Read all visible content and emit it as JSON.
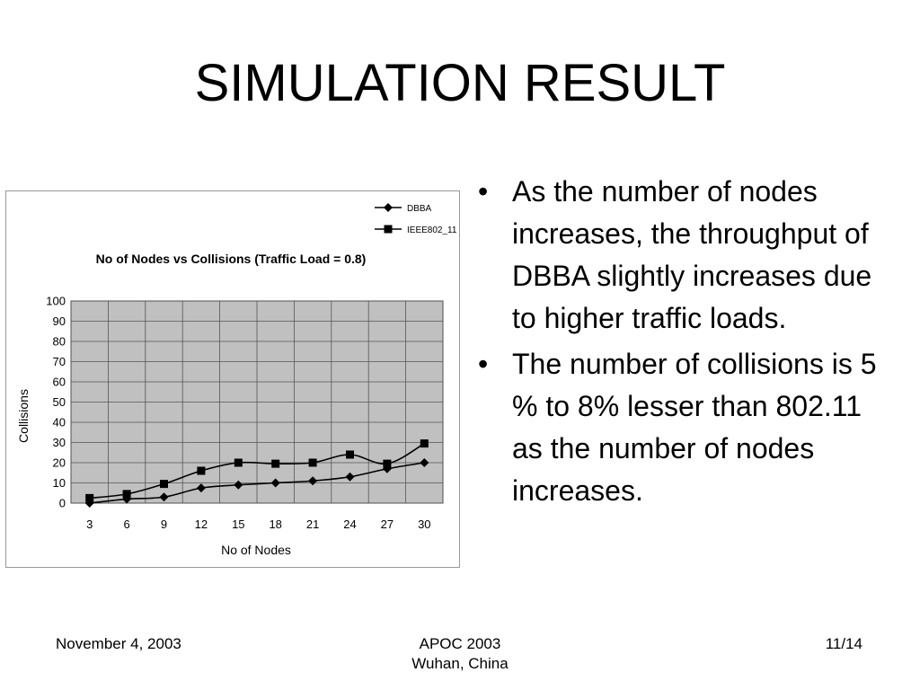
{
  "slide": {
    "title": "SIMULATION RESULT",
    "bullet_marker": "•",
    "bullets": [
      "As the number of nodes increases, the throughput of DBBA slightly increases due to higher traffic loads.",
      "The number of collisions is 5 % to 8% lesser than 802.11 as the number of nodes increases."
    ]
  },
  "footer": {
    "date": "November 4, 2003",
    "conference_line1": "APOC 2003",
    "conference_line2": "Wuhan, China",
    "page": "11/14"
  },
  "chart_data": {
    "type": "line",
    "title": "No of Nodes vs Collisions (Traffic Load = 0.8)",
    "xlabel": "No of Nodes",
    "ylabel": "Collisions",
    "categories": [
      "3",
      "6",
      "9",
      "12",
      "15",
      "18",
      "21",
      "24",
      "27",
      "30"
    ],
    "ylim": [
      0,
      100
    ],
    "yticks": [
      0,
      10,
      20,
      30,
      40,
      50,
      60,
      70,
      80,
      90,
      100
    ],
    "grid": true,
    "legend_position": "top-right",
    "plot_background": "#c0c0c0",
    "series": [
      {
        "name": "DBBA",
        "marker": "diamond",
        "values": [
          0,
          2,
          3,
          7.5,
          9,
          10,
          11,
          13,
          17,
          20
        ]
      },
      {
        "name": "IEEE802_11",
        "marker": "square",
        "values": [
          2.5,
          4.5,
          9.5,
          16,
          20,
          19.5,
          20,
          24,
          19.5,
          29.5
        ]
      }
    ]
  }
}
